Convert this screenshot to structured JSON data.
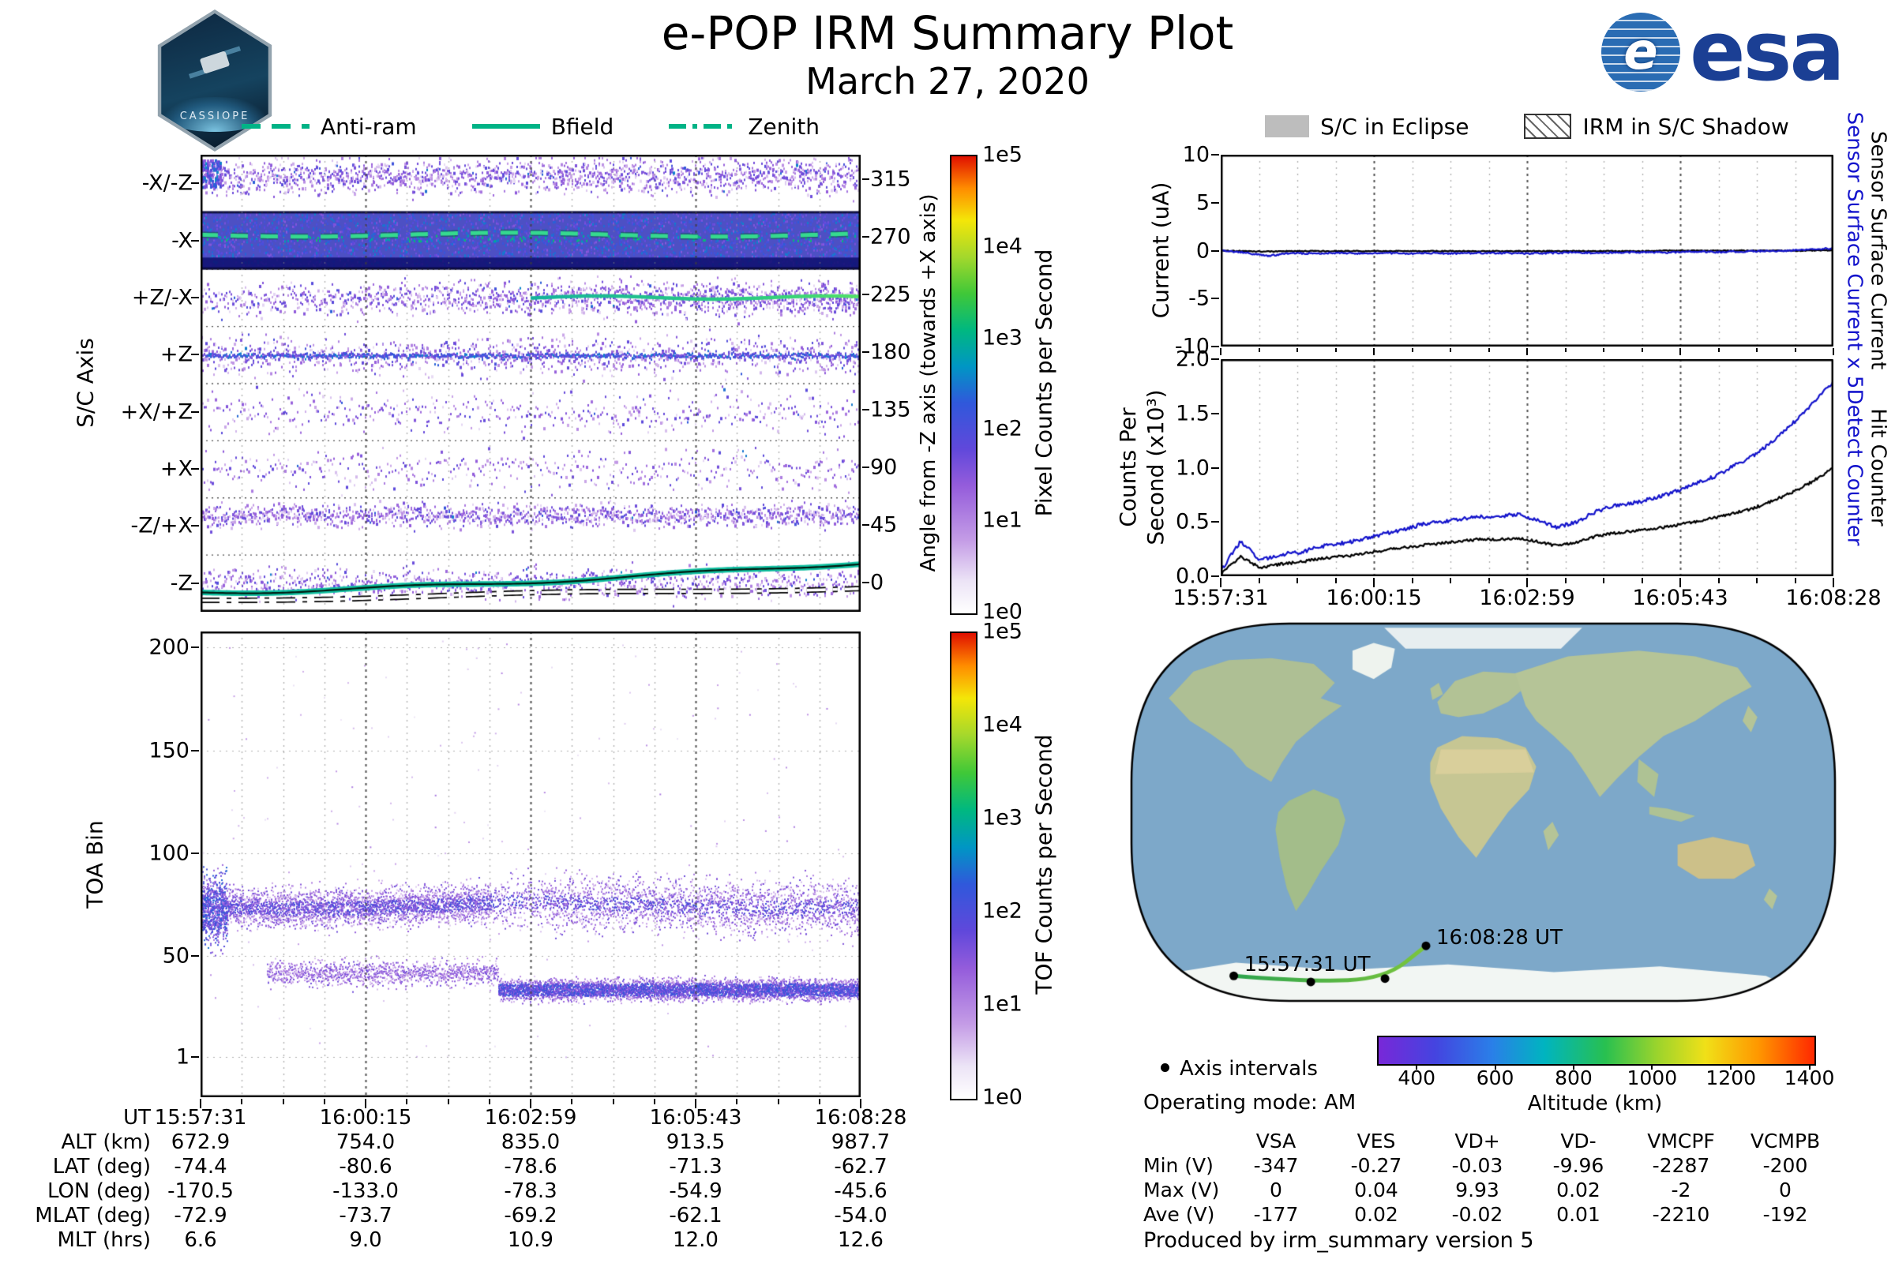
{
  "header": {
    "title": "e-POP IRM Summary Plot",
    "date": "March 27, 2020",
    "cassiope_label": "CASSIOPE",
    "esa_wordmark": "esa"
  },
  "left_legend": {
    "line_color": "#00b386",
    "items": [
      {
        "label": "Anti-ram",
        "style": "dashed"
      },
      {
        "label": "Bfield",
        "style": "solid"
      },
      {
        "label": "Zenith",
        "style": "dashdot"
      }
    ]
  },
  "right_legend": {
    "items": [
      {
        "label": "S/C in Eclipse",
        "style": "filled-gray"
      },
      {
        "label": "IRM in S/C Shadow",
        "style": "hatched"
      }
    ]
  },
  "chart_data": [
    {
      "id": "sc_axis_spectrogram",
      "type": "heatmap",
      "ylabel": "S/C Axis",
      "y_categories": [
        "-X/-Z",
        "-X",
        "+Z/-X",
        "+Z",
        "+X/+Z",
        "+X",
        "-Z/+X",
        "-Z"
      ],
      "band_relative_intensity": [
        0.55,
        1.0,
        0.6,
        0.28,
        0.12,
        0.1,
        0.42,
        0.28
      ],
      "right_axis_label": "Angle from -Z axis (towards +X axis)",
      "right_axis_ticks": [
        315,
        270,
        225,
        180,
        135,
        90,
        45,
        0
      ],
      "x_start": "15:57:31",
      "x_end": "16:08:28",
      "colorbar_label": "Pixel Counts per Second",
      "colorbar_ticks": [
        "1e5",
        "1e4",
        "1e3",
        "1e2",
        "1e1",
        "1e0"
      ],
      "overlays": [
        {
          "name": "Anti-ram",
          "band": "-X",
          "style": "dashed"
        },
        {
          "name": "Bfield",
          "band": "-Z",
          "style": "solid"
        },
        {
          "name": "Zenith",
          "band": "-Z",
          "style": "dashdot"
        }
      ]
    },
    {
      "id": "toa_spectrogram",
      "type": "heatmap",
      "ylabel": "TOA Bin",
      "yticks": [
        200,
        150,
        100,
        50,
        1
      ],
      "ylim": [
        1,
        215
      ],
      "colorbar_label": "TOF Counts per Second",
      "colorbar_ticks": [
        "1e5",
        "1e4",
        "1e3",
        "1e2",
        "1e1",
        "1e0"
      ],
      "features": [
        {
          "name": "upper-band",
          "toa_center": 75,
          "x_from": 0.0,
          "x_to": 1.0
        },
        {
          "name": "lower-band",
          "toa_center": 36,
          "x_from": 0.12,
          "x_to": 1.0
        },
        {
          "name": "start-blob",
          "toa_center": 73,
          "x_from": 0.0,
          "x_to": 0.04
        }
      ]
    },
    {
      "id": "sensor_current",
      "type": "line",
      "ylabel": "Current (uA)",
      "ylim": [
        -10,
        10
      ],
      "yticks": [
        "10",
        "5",
        "0",
        "-5",
        "-10"
      ],
      "xticks": [
        "15:57:31",
        "16:00:15",
        "16:02:59",
        "16:05:43",
        "16:08:28"
      ],
      "series": [
        {
          "name": "Sensor Surface Current x 5",
          "color": "#1414cc",
          "values": [
            0.0,
            -0.2,
            -0.55,
            -0.25,
            -0.3,
            -0.25,
            -0.3,
            -0.25,
            -0.3,
            -0.25,
            -0.3,
            -0.25,
            -0.25,
            -0.3,
            -0.25,
            -0.2,
            -0.25,
            -0.2,
            -0.15,
            -0.2,
            -0.1,
            -0.15,
            -0.1,
            -0.05,
            0.0,
            0.1,
            0.25
          ]
        },
        {
          "name": "Sensor Surface Current",
          "color": "#000000",
          "values": [
            0.0,
            -0.05,
            -0.1,
            -0.05,
            -0.05,
            -0.05,
            -0.05,
            -0.05,
            -0.05,
            -0.05,
            -0.05,
            -0.05,
            -0.05,
            -0.05,
            -0.05,
            -0.05,
            -0.05,
            -0.05,
            -0.05,
            0.0,
            0.0,
            0.0,
            0.0,
            0.0,
            0.0,
            0.0,
            0.05
          ]
        }
      ]
    },
    {
      "id": "hit_detect_counters",
      "type": "line",
      "ylabel": "Counts Per\nSecond (x10³)",
      "ylim": [
        0,
        2
      ],
      "yticks": [
        "2.0",
        "1.5",
        "1.0",
        "0.5",
        "0.0"
      ],
      "xticks": [
        "15:57:31",
        "16:00:15",
        "16:02:59",
        "16:05:43",
        "16:08:28"
      ],
      "series": [
        {
          "name": "Detect Counter",
          "color": "#1414cc",
          "values": [
            0.05,
            0.32,
            0.15,
            0.2,
            0.22,
            0.27,
            0.3,
            0.33,
            0.38,
            0.42,
            0.47,
            0.5,
            0.52,
            0.55,
            0.55,
            0.57,
            0.52,
            0.45,
            0.5,
            0.6,
            0.65,
            0.68,
            0.72,
            0.78,
            0.85,
            0.92,
            1.02,
            1.12,
            1.25,
            1.42,
            1.6,
            1.8
          ]
        },
        {
          "name": "Hit Counter",
          "color": "#000000",
          "values": [
            0.02,
            0.18,
            0.08,
            0.11,
            0.13,
            0.16,
            0.18,
            0.2,
            0.23,
            0.26,
            0.28,
            0.3,
            0.32,
            0.34,
            0.34,
            0.35,
            0.32,
            0.28,
            0.31,
            0.37,
            0.4,
            0.42,
            0.44,
            0.47,
            0.5,
            0.54,
            0.58,
            0.63,
            0.7,
            0.78,
            0.88,
            1.0
          ]
        }
      ]
    },
    {
      "id": "ground_track_map",
      "type": "map",
      "track": {
        "points_frac": [
          [
            0.147,
            0.93
          ],
          [
            0.256,
            0.946
          ],
          [
            0.361,
            0.937
          ],
          [
            0.419,
            0.851
          ]
        ],
        "labels": [
          {
            "text": "15:57:31 UT",
            "at": 0
          },
          {
            "text": "16:08:28 UT",
            "at": 3
          }
        ]
      }
    }
  ],
  "bottom_table": {
    "rows": [
      {
        "label": "UT",
        "values": [
          "15:57:31",
          "16:00:15",
          "16:02:59",
          "16:05:43",
          "16:08:28"
        ]
      },
      {
        "label": "ALT (km)",
        "values": [
          "672.9",
          "754.0",
          "835.0",
          "913.5",
          "987.7"
        ]
      },
      {
        "label": "LAT (deg)",
        "values": [
          "-74.4",
          "-80.6",
          "-78.6",
          "-71.3",
          "-62.7"
        ]
      },
      {
        "label": "LON (deg)",
        "values": [
          "-170.5",
          "-133.0",
          "-78.3",
          "-54.9",
          "-45.6"
        ]
      },
      {
        "label": "MLAT (deg)",
        "values": [
          "-72.9",
          "-73.7",
          "-69.2",
          "-62.1",
          "-54.0"
        ]
      },
      {
        "label": "MLT (hrs)",
        "values": [
          "6.6",
          "9.0",
          "10.9",
          "12.0",
          "12.6"
        ]
      }
    ]
  },
  "map_panel": {
    "axis_intervals_label": "Axis intervals",
    "operating_mode": "Operating mode: AM",
    "altitude_colorbar": {
      "label": "Altitude (km)",
      "ticks": [
        "400",
        "600",
        "800",
        "1000",
        "1200",
        "1400"
      ]
    }
  },
  "voltage_table": {
    "columns": [
      "VSA",
      "VES",
      "VD+",
      "VD-",
      "VMCPF",
      "VCMPB"
    ],
    "rows": [
      {
        "label": "Min (V)",
        "values": [
          "-347",
          "-0.27",
          "-0.03",
          "-9.96",
          "-2287",
          "-200"
        ]
      },
      {
        "label": "Max (V)",
        "values": [
          "0",
          "0.04",
          "9.93",
          "0.02",
          "-2",
          "0"
        ]
      },
      {
        "label": "Ave (V)",
        "values": [
          "-177",
          "0.02",
          "-0.02",
          "0.01",
          "-2210",
          "-192"
        ]
      }
    ]
  },
  "footer": "Produced by irm_summary version 5"
}
